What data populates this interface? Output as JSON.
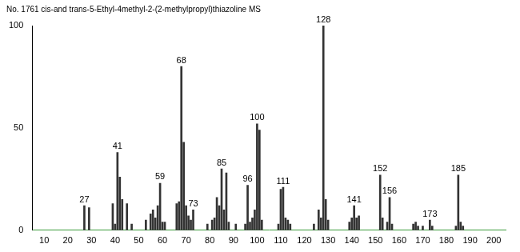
{
  "chart_data": {
    "type": "bar",
    "title": "No. 1761 cis-and trans-5-Ethyl-4methyl-2-(2-methylpropyl)thiazoline MS",
    "x": [
      27,
      29,
      39,
      40,
      41,
      42,
      43,
      45,
      47,
      53,
      55,
      56,
      57,
      58,
      59,
      60,
      61,
      66,
      67,
      68,
      69,
      70,
      71,
      72,
      73,
      79,
      81,
      82,
      83,
      84,
      85,
      86,
      87,
      88,
      91,
      95,
      96,
      97,
      98,
      99,
      100,
      101,
      102,
      109,
      110,
      111,
      112,
      113,
      114,
      124,
      126,
      127,
      128,
      129,
      130,
      139,
      140,
      141,
      142,
      143,
      152,
      153,
      155,
      156,
      157,
      166,
      167,
      168,
      170,
      173,
      174,
      184,
      185,
      186,
      187
    ],
    "values": [
      12,
      11,
      13,
      3,
      38,
      26,
      15,
      13,
      3,
      5,
      8,
      10,
      6,
      12,
      23,
      4,
      4,
      13,
      14,
      80,
      43,
      12,
      7,
      5,
      10,
      3,
      5,
      6,
      16,
      12,
      30,
      10,
      28,
      4,
      3,
      3,
      22,
      4,
      6,
      10,
      52,
      49,
      5,
      3,
      20,
      21,
      6,
      5,
      3,
      3,
      10,
      6,
      100,
      15,
      5,
      4,
      6,
      12,
      6,
      7,
      27,
      6,
      4,
      16,
      3,
      3,
      4,
      2,
      2,
      5,
      2,
      2,
      27,
      4,
      2
    ],
    "annotations": [
      27,
      41,
      59,
      68,
      73,
      85,
      96,
      100,
      111,
      128,
      141,
      152,
      156,
      173,
      185
    ],
    "color": "#333333",
    "xlim": [
      5,
      205
    ],
    "xticks": [
      10,
      20,
      30,
      40,
      50,
      60,
      70,
      80,
      90,
      100,
      110,
      120,
      130,
      140,
      150,
      160,
      170,
      180,
      190,
      200
    ],
    "ylim": [
      0,
      100
    ],
    "yticks": [
      0,
      50,
      100
    ],
    "grid": false
  }
}
